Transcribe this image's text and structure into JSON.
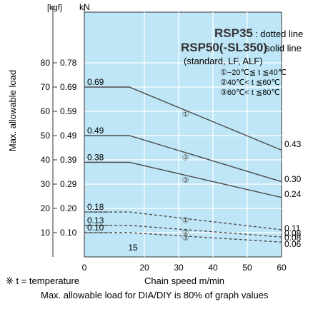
{
  "chart_data": {
    "type": "line",
    "y_unit_kgf": "[kgf]",
    "y_unit_kn": "kN",
    "ylabel": "Max. allowable load",
    "xlabel": "Chain speed  m/min",
    "xlim": [
      0,
      60
    ],
    "ylim_kgf": [
      0,
      90
    ],
    "x_ticks": [
      "0",
      "20",
      "30",
      "40",
      "50",
      "60"
    ],
    "y_ticks": [
      {
        "kgf": 10,
        "kgf_label": "10",
        "kn_label": "0.10"
      },
      {
        "kgf": 20,
        "kgf_label": "20",
        "kn_label": "0.20"
      },
      {
        "kgf": 30,
        "kgf_label": "30",
        "kn_label": "0.29"
      },
      {
        "kgf": 40,
        "kgf_label": "40",
        "kn_label": "0.39"
      },
      {
        "kgf": 50,
        "kgf_label": "50",
        "kn_label": "0.49"
      },
      {
        "kgf": 60,
        "kgf_label": "60",
        "kn_label": "0.59"
      },
      {
        "kgf": 70,
        "kgf_label": "70",
        "kn_label": "0.69"
      },
      {
        "kgf": 80,
        "kgf_label": "80",
        "kn_label": "0.78"
      }
    ],
    "grid": true,
    "background": "#bfe6f7",
    "line_color": "#4a4a4a",
    "legend": {
      "rsp35_name": "RSP35",
      "rsp35_desc": ": dotted line",
      "rsp50_name": "RSP50(-SL350)",
      "rsp50_desc": ": solid line",
      "note": "(standard, LF, ALF)",
      "temps": [
        "①−20℃≦ t ≦40℃",
        "②40℃< t ≦60℃",
        "③60℃< t ≦80℃"
      ]
    },
    "breakpoint_label": "15",
    "series": [
      {
        "id": "1",
        "style": "solid",
        "start_label": "0.69",
        "end_label": "0.43",
        "x": [
          0,
          15,
          60
        ],
        "y": [
          70,
          70,
          44
        ]
      },
      {
        "id": "2",
        "style": "solid",
        "start_label": "0.49",
        "end_label": "0.30",
        "x": [
          0,
          15,
          60
        ],
        "y": [
          50,
          50,
          31
        ]
      },
      {
        "id": "3",
        "style": "solid",
        "start_label": "0.38",
        "end_label": "0.24",
        "x": [
          0,
          15,
          60
        ],
        "y": [
          39,
          39,
          24.5
        ]
      },
      {
        "id": "1",
        "style": "dotted",
        "start_label": "0.18",
        "end_label": "0.11",
        "x": [
          0,
          15,
          60
        ],
        "y": [
          18.5,
          18.5,
          11.2
        ]
      },
      {
        "id": "2",
        "style": "dotted",
        "start_label": "0.13",
        "end_label": "0.08",
        "x": [
          0,
          15,
          60
        ],
        "y": [
          13,
          13,
          8.2
        ]
      },
      {
        "id": "3",
        "style": "dotted",
        "start_label": "0.10",
        "end_label": "0.06",
        "x": [
          0,
          15,
          60
        ],
        "y": [
          10,
          10,
          6.1
        ]
      }
    ],
    "mid_line_end_label": "0.08",
    "circle_markers": [
      "①",
      "②",
      "③",
      "①",
      "②",
      "③"
    ]
  },
  "footnotes": {
    "temperature_note": "※ t = temperature",
    "dia_note": "Max. allowable load for DIA/DIY is 80% of graph values"
  }
}
